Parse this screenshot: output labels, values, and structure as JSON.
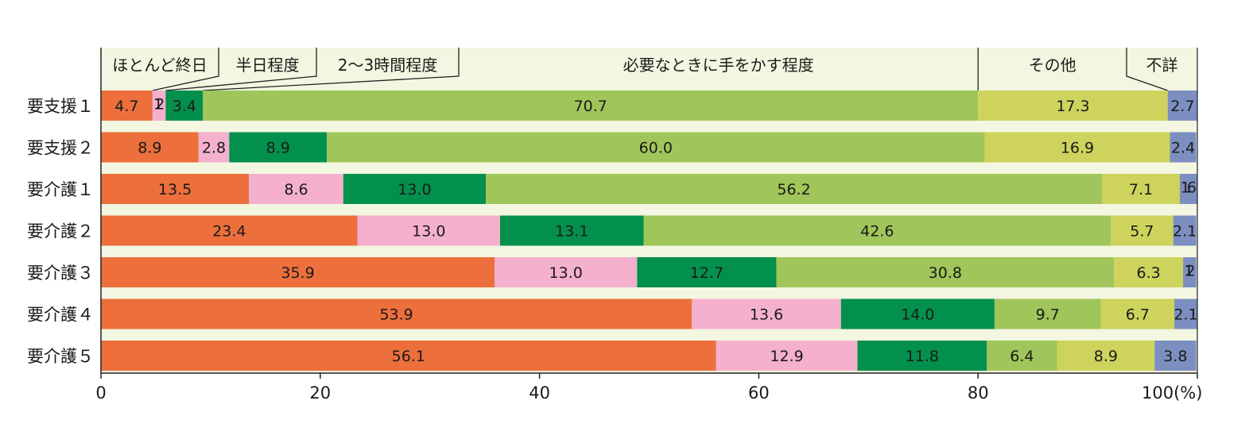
{
  "chart_data": {
    "type": "bar",
    "orientation": "horizontal",
    "stacked": true,
    "categories": [
      "要支援１",
      "要支援２",
      "要介護１",
      "要介護２",
      "要介護３",
      "要介護４",
      "要介護５"
    ],
    "series": [
      {
        "name": "ほとんど終日",
        "color": "#EC6F3C",
        "values": [
          4.7,
          8.9,
          13.5,
          23.4,
          35.9,
          53.9,
          56.1
        ],
        "labels": [
          "4.7",
          "8.9",
          "13.5",
          "23.4",
          "35.9",
          "53.9",
          "56.1"
        ]
      },
      {
        "name": "半日程度",
        "color": "#F4B0CC",
        "values": [
          1.2,
          2.8,
          8.6,
          13.0,
          13.0,
          13.6,
          12.9
        ],
        "labels": [
          "1.2",
          "2.8",
          "8.6",
          "13.0",
          "13.0",
          "13.6",
          "12.9"
        ]
      },
      {
        "name": "2～3時間程度",
        "color": "#03904D",
        "values": [
          3.4,
          8.9,
          13.0,
          13.1,
          12.7,
          14.0,
          11.8
        ],
        "labels": [
          "3.4",
          "8.9",
          "13.0",
          "13.1",
          "12.7",
          "14.0",
          "11.8"
        ]
      },
      {
        "name": "必要なときに手をかす程度",
        "color": "#A0C55A",
        "values": [
          70.7,
          60.0,
          56.2,
          42.6,
          30.8,
          9.7,
          6.4
        ],
        "labels": [
          "70.7",
          "60.0",
          "56.2",
          "42.6",
          "30.8",
          "9.7",
          "6.4"
        ]
      },
      {
        "name": "その他",
        "color": "#CDD35C",
        "values": [
          17.3,
          16.9,
          7.1,
          5.7,
          6.3,
          6.7,
          8.9
        ],
        "labels": [
          "17.3",
          "16.9",
          "7.1",
          "5.7",
          "6.3",
          "6.7",
          "8.9"
        ]
      },
      {
        "name": "不詳",
        "color": "#7C8FC0",
        "values": [
          2.7,
          2.4,
          1.6,
          2.1,
          1.2,
          2.1,
          3.8
        ],
        "labels": [
          "2.7",
          "2.4",
          "1.6",
          "2.1",
          "1.2",
          "2.1",
          "3.8"
        ]
      }
    ],
    "xlim": [
      0,
      100
    ],
    "x_ticks": [
      "0",
      "20",
      "40",
      "60",
      "80",
      "100(%)"
    ],
    "x_tick_values": [
      0,
      20,
      40,
      60,
      80,
      100
    ],
    "legend_placement": "top",
    "background_color": "#F3F6E0",
    "grid": false
  }
}
